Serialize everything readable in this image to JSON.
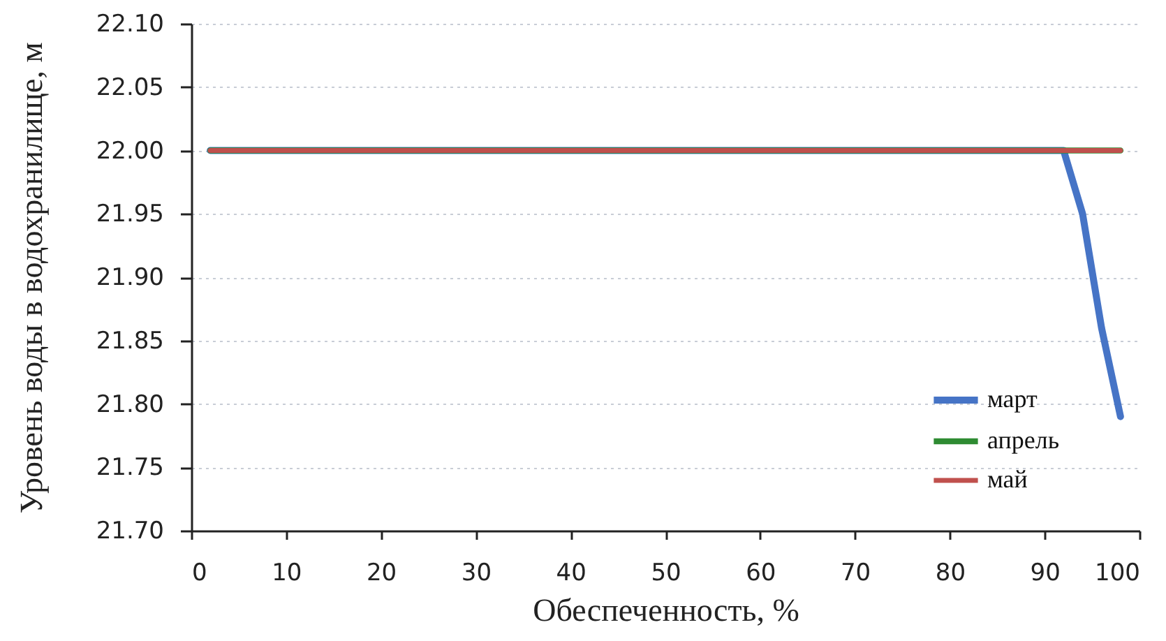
{
  "chart_data": {
    "type": "line",
    "xlabel": "Обеспеченность, %",
    "ylabel": "Уровень воды в водохранилище, м",
    "xlim": [
      0,
      100
    ],
    "xticks": [
      0,
      10,
      20,
      30,
      40,
      50,
      60,
      70,
      80,
      90,
      100
    ],
    "ylim": [
      21.7,
      22.1
    ],
    "yticks": [
      {
        "value": 21.7,
        "label": "21.70"
      },
      {
        "value": 21.75,
        "label": "21.75"
      },
      {
        "value": 21.8,
        "label": "21.80"
      },
      {
        "value": 21.85,
        "label": "21.85"
      },
      {
        "value": 21.9,
        "label": "21.90"
      },
      {
        "value": 21.95,
        "label": "21.95"
      },
      {
        "value": 22.0,
        "label": "22.00"
      },
      {
        "value": 22.05,
        "label": "22.05"
      },
      {
        "value": 22.1,
        "label": "22.10"
      }
    ],
    "grid": "y",
    "legend": "bottom right",
    "marker": "none",
    "line_style": "solid",
    "series": [
      {
        "name": "март",
        "color": "#4674c6",
        "x": [
          2,
          92,
          94,
          96,
          98
        ],
        "values": [
          22.0,
          22.0,
          21.95,
          21.86,
          21.79
        ]
      },
      {
        "name": "апрель",
        "color": "#2e8b32",
        "x": [
          2,
          98
        ],
        "values": [
          22.0,
          22.0
        ]
      },
      {
        "name": "май",
        "color": "#c0504d",
        "x": [
          2,
          98
        ],
        "values": [
          22.0,
          22.0
        ]
      }
    ]
  }
}
